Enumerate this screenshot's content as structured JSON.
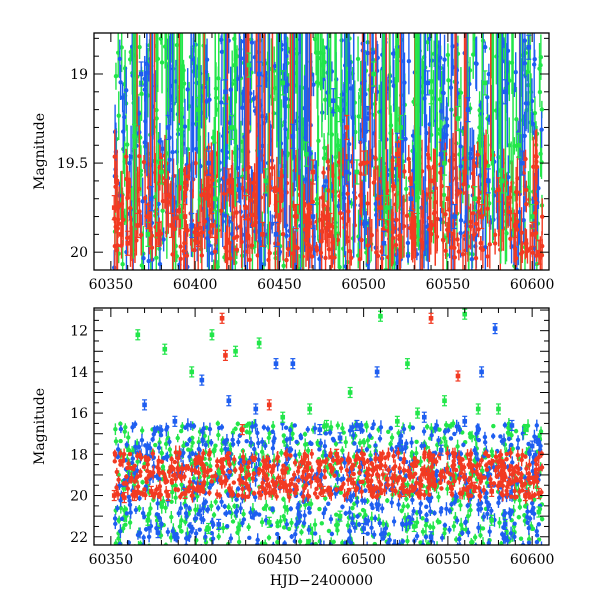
{
  "chart_data": [
    {
      "type": "scatter",
      "panel": "top",
      "title": "",
      "xlabel": "",
      "ylabel": "Magnitude",
      "xlim": [
        60340,
        60610
      ],
      "ylim": [
        20.1,
        18.77
      ],
      "y_inverted": true,
      "xticks": [
        60350,
        60400,
        60450,
        60500,
        60550,
        60600
      ],
      "xtick_labels": [
        "60350",
        "60400",
        "60450",
        "60500",
        "60550",
        "60600"
      ],
      "yticks": [
        19,
        19.5,
        20
      ],
      "ytick_labels": [
        "19",
        "19.5",
        "20"
      ],
      "error_bars": true,
      "grid": false,
      "legend": "none",
      "series": [
        {
          "color": "#22e64a",
          "x": [
            60364,
            60368,
            60372,
            60380,
            60392,
            60402,
            60412,
            60422,
            60432,
            60442,
            60452,
            60466,
            60476,
            60486,
            60496,
            60506,
            60514,
            60522,
            60532,
            60540,
            60548,
            60556,
            60566,
            60572,
            60582,
            60592,
            60600
          ],
          "y": [
            19.35,
            19.05,
            19.9,
            19.55,
            19.8,
            19.2,
            19.7,
            19.3,
            18.95,
            19.6,
            19.05,
            19.45,
            18.95,
            19.2,
            19.55,
            19.0,
            19.75,
            19.3,
            19.85,
            19.1,
            19.5,
            19.25,
            19.7,
            19.05,
            19.6,
            19.4,
            19.8
          ]
        },
        {
          "color": "#1e5ef0",
          "x": [
            60368,
            60374,
            60384,
            60398,
            60408,
            60418,
            60426,
            60438,
            60448,
            60458,
            60470,
            60482,
            60490,
            60502,
            60512,
            60520,
            60528,
            60538,
            60546,
            60554,
            60562,
            60574,
            60584,
            60594,
            60598
          ],
          "y": [
            19.0,
            19.7,
            19.3,
            19.85,
            19.5,
            19.1,
            19.65,
            19.0,
            19.9,
            19.35,
            19.8,
            19.15,
            19.55,
            19.25,
            19.95,
            19.4,
            19.7,
            19.05,
            19.45,
            19.8,
            19.2,
            19.6,
            19.1,
            19.5,
            18.85
          ]
        },
        {
          "color": "#f23a22",
          "x": [
            60352,
            60356,
            60360,
            60366,
            60372,
            60378,
            60386,
            60394,
            60402,
            60410,
            60420,
            60430,
            60440,
            60450,
            60460,
            60470,
            60480,
            60490,
            60500,
            60510,
            60520,
            60530,
            60540,
            60550,
            60560,
            60570,
            60580,
            60590,
            60600,
            60604
          ],
          "y": [
            19.75,
            19.9,
            19.95,
            19.85,
            19.8,
            19.9,
            19.85,
            19.8,
            19.9,
            19.85,
            19.6,
            19.75,
            19.9,
            19.65,
            19.8,
            19.55,
            19.85,
            19.3,
            19.5,
            19.75,
            19.45,
            19.85,
            19.6,
            19.7,
            19.55,
            19.8,
            19.65,
            19.85,
            19.9,
            20.0
          ]
        }
      ]
    },
    {
      "type": "scatter",
      "panel": "bottom",
      "title": "",
      "xlabel": "HJD−2400000",
      "ylabel": "Magnitude",
      "xlim": [
        60340,
        60610
      ],
      "ylim": [
        22.4,
        10.9
      ],
      "y_inverted": true,
      "xticks": [
        60350,
        60400,
        60450,
        60500,
        60550,
        60600
      ],
      "xtick_labels": [
        "60350",
        "60400",
        "60450",
        "60500",
        "60550",
        "60600"
      ],
      "yticks": [
        12,
        14,
        16,
        18,
        20,
        22
      ],
      "ytick_labels": [
        "12",
        "14",
        "16",
        "18",
        "20",
        "22"
      ],
      "error_bars": true,
      "grid": false,
      "legend": "none",
      "series": [
        {
          "color": "#22e64a",
          "x": [
            60366,
            60382,
            60398,
            60410,
            60424,
            60438,
            60452,
            60468,
            60478,
            60492,
            60510,
            60520,
            60526,
            60532,
            60548,
            60560,
            60568,
            60580,
            60596,
            60604,
            60372,
            60408,
            60444,
            60486,
            60530,
            60576
          ],
          "y": [
            12.2,
            12.9,
            14.0,
            12.2,
            13.0,
            12.6,
            16.2,
            15.8,
            16.6,
            15.0,
            11.3,
            16.4,
            13.6,
            16.0,
            15.4,
            11.2,
            15.8,
            15.8,
            16.8,
            20.8,
            21.2,
            21.6,
            21.3,
            21.0,
            21.5,
            21.2
          ]
        },
        {
          "color": "#1e5ef0",
          "x": [
            60370,
            60388,
            60404,
            60420,
            60436,
            60448,
            60458,
            60474,
            60486,
            60496,
            60508,
            60522,
            60536,
            60546,
            60560,
            60570,
            60578,
            60588,
            60600,
            60378,
            60414,
            60462,
            60500,
            60540,
            60584
          ],
          "y": [
            15.6,
            16.4,
            14.4,
            15.4,
            15.8,
            13.6,
            13.6,
            16.8,
            17.2,
            16.6,
            14.0,
            17.4,
            16.2,
            17.8,
            16.4,
            14.0,
            11.9,
            16.6,
            17.6,
            21.8,
            21.4,
            21.0,
            21.6,
            22.0,
            21.4
          ]
        },
        {
          "color": "#f23a22",
          "x": [
            60352,
            60358,
            60364,
            60374,
            60384,
            60394,
            60404,
            60416,
            60418,
            60428,
            60444,
            60452,
            60466,
            60476,
            60484,
            60494,
            60504,
            60514,
            60524,
            60534,
            60540,
            60552,
            60556,
            60566,
            60576,
            60586,
            60596,
            60604
          ],
          "y": [
            20.0,
            20.1,
            20.0,
            19.8,
            20.0,
            19.9,
            19.6,
            11.4,
            13.2,
            16.8,
            15.6,
            19.4,
            18.6,
            19.8,
            18.0,
            19.4,
            19.6,
            19.2,
            19.8,
            19.5,
            11.4,
            19.6,
            14.2,
            19.6,
            19.8,
            19.4,
            20.0,
            19.9
          ]
        }
      ]
    }
  ]
}
